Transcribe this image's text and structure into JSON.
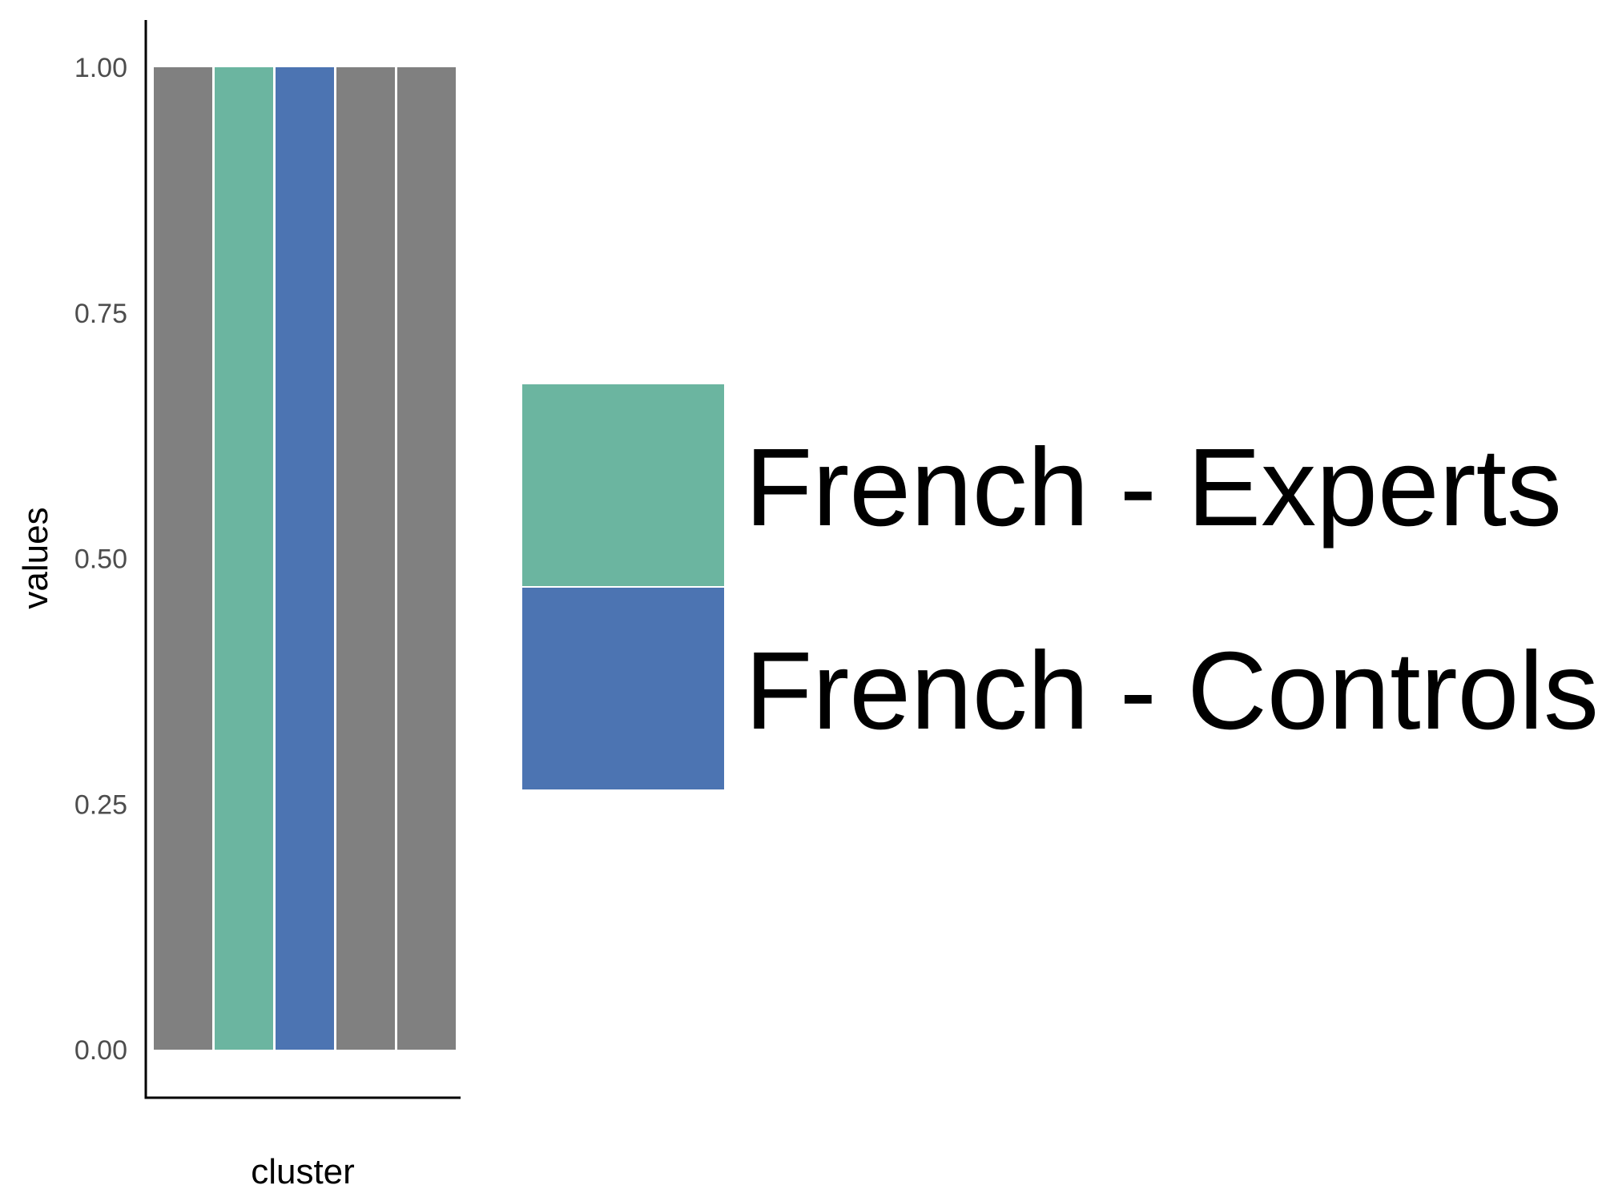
{
  "chart_data": {
    "type": "bar",
    "title": "",
    "xlabel": "cluster",
    "ylabel": "values",
    "ylim": [
      0,
      1
    ],
    "yticks": [
      "0.00",
      "0.25",
      "0.50",
      "0.75",
      "1.00"
    ],
    "grid": false,
    "legend_position": "right",
    "bars": [
      {
        "value": 1.0,
        "color": "#808080"
      },
      {
        "value": 1.0,
        "color": "#6bb5a0",
        "group": "French - Experts"
      },
      {
        "value": 1.0,
        "color": "#4c74b2",
        "group": "French - Controls"
      },
      {
        "value": 1.0,
        "color": "#808080"
      },
      {
        "value": 1.0,
        "color": "#808080"
      }
    ],
    "legend": [
      {
        "label": "French - Experts",
        "color": "#6bb5a0"
      },
      {
        "label": "French - Controls",
        "color": "#4c74b2"
      }
    ]
  }
}
